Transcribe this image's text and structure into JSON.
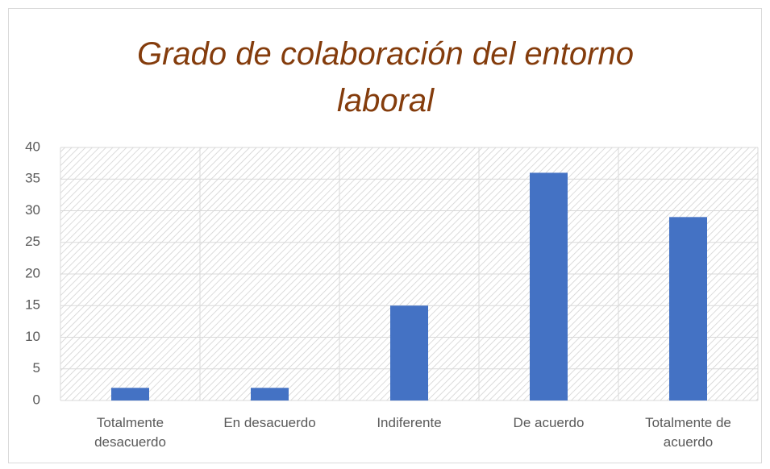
{
  "chart_data": {
    "type": "bar",
    "title": "Grado de colaboración del entorno laboral",
    "categories": [
      "Totalmente desacuerdo",
      "En desacuerdo",
      "Indiferente",
      "De acuerdo",
      "Totalmente de acuerdo"
    ],
    "values": [
      2,
      2,
      15,
      36,
      29
    ],
    "color": "#4472c4",
    "ylim": [
      0,
      40
    ],
    "yticks": [
      0,
      5,
      10,
      15,
      20,
      25,
      30,
      35,
      40
    ],
    "grid": true
  }
}
